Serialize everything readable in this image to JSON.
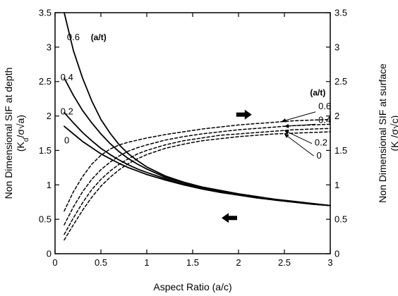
{
  "chart_data": {
    "type": "line",
    "x_axis": {
      "label": "Aspect Ratio (a/c)",
      "range": [
        0,
        3
      ],
      "ticks": [
        0,
        0.5,
        1,
        1.5,
        2,
        2.5,
        3
      ],
      "tick_labels": [
        "0",
        "0.5",
        "1",
        "1.5",
        "2",
        "2.5",
        "3"
      ]
    },
    "y_left": {
      "label_line1": "Non Dimensional SIF at depth",
      "label_line2": "(K",
      "label_sub": "d",
      "label_line2_end": "/σ√a)",
      "range": [
        0,
        3.5
      ],
      "ticks": [
        0,
        0.5,
        1,
        1.5,
        2,
        2.5,
        3,
        3.5
      ],
      "tick_labels": [
        "0",
        "0.5",
        "1",
        "1.5",
        "2",
        "2.5",
        "3",
        "3.5"
      ]
    },
    "y_right": {
      "label_line1": "Non Dimensional SIF at surface",
      "label_line2": "(K",
      "label_sub": "c",
      "label_line2_end": "/σ√c)",
      "range": [
        0,
        3.5
      ],
      "ticks": [
        0,
        0.5,
        1,
        1.5,
        2,
        2.5,
        3,
        3.5
      ],
      "tick_labels": [
        "0",
        "0.5",
        "1",
        "1.5",
        "2",
        "2.5",
        "3",
        "3.5"
      ]
    },
    "grid": false,
    "series": [
      {
        "group": "depth",
        "a_t": "0.6",
        "style": "solid",
        "x": [
          0.1,
          0.2,
          0.3,
          0.4,
          0.5,
          0.6,
          0.7,
          0.8,
          0.9,
          1.0,
          1.2,
          1.4,
          1.6,
          1.8,
          2.0,
          2.2,
          2.4,
          2.6,
          2.8,
          3.0
        ],
        "y": [
          3.5,
          2.95,
          2.55,
          2.22,
          1.95,
          1.75,
          1.58,
          1.45,
          1.35,
          1.26,
          1.13,
          1.04,
          0.97,
          0.92,
          0.87,
          0.83,
          0.79,
          0.76,
          0.73,
          0.7
        ]
      },
      {
        "group": "depth",
        "a_t": "0.4",
        "style": "solid",
        "x": [
          0.1,
          0.2,
          0.3,
          0.4,
          0.5,
          0.6,
          0.7,
          0.8,
          0.9,
          1.0,
          1.2,
          1.4,
          1.6,
          1.8,
          2.0,
          2.2,
          2.4,
          2.6,
          2.8,
          3.0
        ],
        "y": [
          2.55,
          2.3,
          2.08,
          1.9,
          1.74,
          1.6,
          1.48,
          1.38,
          1.3,
          1.23,
          1.11,
          1.03,
          0.96,
          0.91,
          0.86,
          0.82,
          0.78,
          0.75,
          0.72,
          0.7
        ]
      },
      {
        "group": "depth",
        "a_t": "0.2",
        "style": "solid",
        "x": [
          0.1,
          0.2,
          0.3,
          0.4,
          0.5,
          0.6,
          0.7,
          0.8,
          0.9,
          1.0,
          1.2,
          1.4,
          1.6,
          1.8,
          2.0,
          2.2,
          2.4,
          2.6,
          2.8,
          3.0
        ],
        "y": [
          2.05,
          1.9,
          1.76,
          1.64,
          1.53,
          1.44,
          1.36,
          1.29,
          1.23,
          1.18,
          1.09,
          1.01,
          0.95,
          0.9,
          0.86,
          0.82,
          0.78,
          0.75,
          0.72,
          0.7
        ]
      },
      {
        "group": "depth",
        "a_t": "0",
        "style": "solid",
        "x": [
          0.1,
          0.2,
          0.3,
          0.4,
          0.5,
          0.6,
          0.7,
          0.8,
          0.9,
          1.0,
          1.2,
          1.4,
          1.6,
          1.8,
          2.0,
          2.2,
          2.4,
          2.6,
          2.8,
          3.0
        ],
        "y": [
          1.85,
          1.74,
          1.63,
          1.54,
          1.45,
          1.38,
          1.31,
          1.25,
          1.2,
          1.15,
          1.07,
          1.0,
          0.94,
          0.89,
          0.85,
          0.81,
          0.78,
          0.75,
          0.72,
          0.7
        ]
      },
      {
        "group": "surface",
        "a_t": "0.6",
        "style": "dashed",
        "x": [
          0.1,
          0.2,
          0.3,
          0.4,
          0.5,
          0.6,
          0.7,
          0.8,
          0.9,
          1.0,
          1.2,
          1.4,
          1.6,
          1.8,
          2.0,
          2.2,
          2.4,
          2.6,
          2.8,
          3.0
        ],
        "y": [
          0.62,
          0.9,
          1.12,
          1.3,
          1.43,
          1.52,
          1.58,
          1.62,
          1.65,
          1.68,
          1.73,
          1.77,
          1.81,
          1.84,
          1.87,
          1.89,
          1.91,
          1.93,
          1.94,
          1.95
        ]
      },
      {
        "group": "surface",
        "a_t": "0.4",
        "style": "dashed",
        "x": [
          0.1,
          0.2,
          0.3,
          0.4,
          0.5,
          0.6,
          0.7,
          0.8,
          0.9,
          1.0,
          1.2,
          1.4,
          1.6,
          1.8,
          2.0,
          2.2,
          2.4,
          2.6,
          2.8,
          3.0
        ],
        "y": [
          0.42,
          0.68,
          0.9,
          1.08,
          1.22,
          1.33,
          1.42,
          1.49,
          1.54,
          1.58,
          1.65,
          1.7,
          1.74,
          1.77,
          1.8,
          1.82,
          1.84,
          1.86,
          1.87,
          1.88
        ]
      },
      {
        "group": "surface",
        "a_t": "0.2",
        "style": "dashed",
        "x": [
          0.1,
          0.2,
          0.3,
          0.4,
          0.5,
          0.6,
          0.7,
          0.8,
          0.9,
          1.0,
          1.2,
          1.4,
          1.6,
          1.8,
          2.0,
          2.2,
          2.4,
          2.6,
          2.8,
          3.0
        ],
        "y": [
          0.28,
          0.52,
          0.74,
          0.93,
          1.08,
          1.2,
          1.3,
          1.38,
          1.45,
          1.5,
          1.58,
          1.64,
          1.68,
          1.72,
          1.74,
          1.76,
          1.78,
          1.8,
          1.81,
          1.82
        ]
      },
      {
        "group": "surface",
        "a_t": "0",
        "style": "dashed",
        "x": [
          0.1,
          0.2,
          0.3,
          0.4,
          0.5,
          0.6,
          0.7,
          0.8,
          0.9,
          1.0,
          1.2,
          1.4,
          1.6,
          1.8,
          2.0,
          2.2,
          2.4,
          2.6,
          2.8,
          3.0
        ],
        "y": [
          0.2,
          0.42,
          0.63,
          0.82,
          0.98,
          1.11,
          1.22,
          1.31,
          1.38,
          1.44,
          1.53,
          1.59,
          1.64,
          1.67,
          1.7,
          1.72,
          1.74,
          1.75,
          1.76,
          1.77
        ]
      }
    ],
    "annotations": {
      "depth_labels": [
        {
          "text": "0.6",
          "x": 0.13,
          "y": 3.1
        },
        {
          "text": "0.4",
          "x": 0.06,
          "y": 2.52
        },
        {
          "text": "0.2",
          "x": 0.06,
          "y": 2.02
        },
        {
          "text": "0",
          "x": 0.1,
          "y": 1.6
        }
      ],
      "depth_group_label": {
        "text": "(a/t)",
        "x": 0.39,
        "y": 3.1
      },
      "surface_group_label": {
        "text": "(a/t)",
        "x": 2.78,
        "y": 2.3
      },
      "surface_labels": [
        {
          "text": "0.6",
          "x": 2.87,
          "y": 2.1
        },
        {
          "text": "0.4",
          "x": 2.87,
          "y": 1.9
        },
        {
          "text": "0.2",
          "x": 2.83,
          "y": 1.57
        },
        {
          "text": "0",
          "x": 2.85,
          "y": 1.38
        }
      ],
      "surface_leaders": [
        {
          "from": [
            2.84,
            2.06
          ],
          "to": [
            2.47,
            1.92
          ]
        },
        {
          "from": [
            2.84,
            1.88
          ],
          "to": [
            2.5,
            1.85
          ]
        },
        {
          "from": [
            2.8,
            1.6
          ],
          "to": [
            2.5,
            1.79
          ]
        },
        {
          "from": [
            2.82,
            1.42
          ],
          "to": [
            2.5,
            1.74
          ]
        }
      ],
      "arrow_right": {
        "x": 2.06,
        "y": 2.02,
        "direction": "right",
        "meaning": "right axis"
      },
      "arrow_left": {
        "x": 1.9,
        "y": 0.52,
        "direction": "left",
        "meaning": "left axis"
      }
    }
  }
}
